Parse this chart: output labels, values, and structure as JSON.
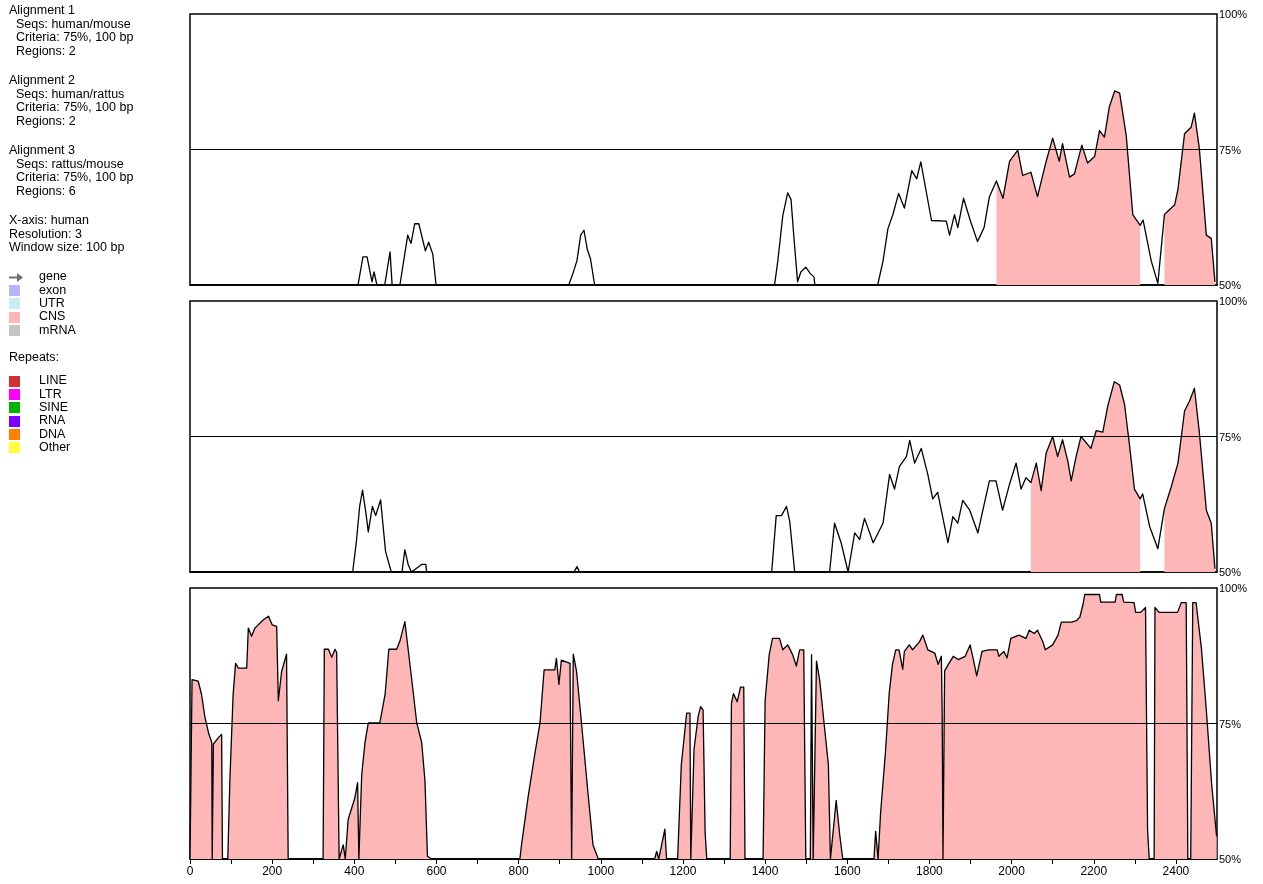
{
  "chart_data": [
    {
      "type": "line",
      "xlim": [
        0,
        2500
      ],
      "ylim": [
        50,
        100
      ],
      "yticks": [
        {
          "value": 50,
          "label": "50%"
        },
        {
          "value": 75,
          "label": "75%"
        },
        {
          "value": 100,
          "label": "100%"
        }
      ],
      "tick_labels": "y",
      "marker": "none",
      "ref_lines": [
        {
          "axis": "y",
          "value": 75,
          "color": "#000000"
        }
      ],
      "annotations": [
        "Alignment 1\n  Seqs: human/mouse\n  Criteria: 75%, 100 bp\n  Regions: 2",
        "Alignment 2\n  Seqs: human/rattus\n  Criteria: 75%, 100 bp\n  Regions: 2",
        "Alignment 3\n  Seqs: rattus/mouse\n  Criteria: 75%, 100 bp\n  Regions: 6",
        "X-axis: human\nResolution: 3\nWindow size: 100 bp",
        "gene",
        "exon",
        "UTR",
        "CNS",
        "mRNA",
        "Repeats:",
        "LINE",
        "LTR",
        "SINE",
        "RNA",
        "DNA",
        "Other"
      ],
      "x": [
        0,
        409,
        421,
        431,
        443,
        448,
        455,
        474,
        487,
        492,
        511,
        530,
        538,
        547,
        557,
        573,
        581,
        591,
        599,
        922,
        932,
        942,
        951,
        959,
        967,
        975,
        985,
        1423,
        1431,
        1443,
        1455,
        1463,
        1471,
        1479,
        1487,
        1499,
        1510,
        1519,
        1521,
        1674,
        1687,
        1699,
        1711,
        1725,
        1739,
        1757,
        1769,
        1779,
        1805,
        1841,
        1849,
        1861,
        1869,
        1883,
        1899,
        1917,
        1933,
        1946,
        1963,
        1979,
        1995,
        2015,
        2027,
        2047,
        2063,
        2083,
        2100,
        2116,
        2124,
        2141,
        2153,
        2171,
        2185,
        2202,
        2214,
        2226,
        2238,
        2251,
        2263,
        2279,
        2295,
        2313,
        2320,
        2340,
        2356,
        2372,
        2397,
        2405,
        2421,
        2437,
        2445,
        2457,
        2474,
        2486,
        2495
      ],
      "series": [
        {
          "type": "area",
          "color": "#ffb6b6",
          "values": [
            null,
            null,
            null,
            null,
            null,
            null,
            null,
            null,
            null,
            null,
            null,
            null,
            null,
            null,
            null,
            null,
            null,
            null,
            null,
            null,
            null,
            null,
            null,
            null,
            null,
            null,
            null,
            null,
            null,
            null,
            null,
            null,
            null,
            null,
            null,
            null,
            null,
            null,
            null,
            null,
            null,
            null,
            null,
            null,
            null,
            null,
            null,
            null,
            null,
            null,
            null,
            null,
            null,
            null,
            null,
            null,
            null,
            null,
            69.2,
            66,
            72.8,
            74.9,
            70.2,
            70.8,
            66.3,
            72.5,
            77.1,
            72.8,
            76.1,
            69.9,
            70.5,
            75.8,
            72.5,
            73.7,
            78.5,
            77.3,
            82.9,
            85.8,
            85.4,
            77.6,
            63,
            61,
            null,
            null,
            null,
            63,
            64.8,
            67.7,
            77.9,
            79.1,
            81.7,
            75.2,
            59.2,
            58.6,
            50.6
          ]
        },
        {
          "type": "line",
          "color": "#000000",
          "values": [
            50,
            50,
            55.2,
            55.2,
            50.6,
            52.4,
            50,
            50,
            56.1,
            50,
            50,
            59.2,
            57.7,
            61.3,
            61.3,
            56.3,
            57.9,
            55.7,
            50,
            50,
            52.1,
            54.5,
            59.2,
            60.1,
            56.6,
            54.8,
            50,
            50,
            54.5,
            62.8,
            67,
            65.8,
            57.9,
            50.6,
            52.4,
            53.3,
            52.1,
            51.5,
            50,
            50,
            54.4,
            60.4,
            63,
            66.9,
            64.2,
            71.1,
            69.6,
            72.7,
            61.9,
            61.8,
            59.2,
            63,
            60.6,
            66,
            62,
            58,
            60.6,
            66.3,
            69.2,
            66,
            72.8,
            74.9,
            70.2,
            70.8,
            66.3,
            72.5,
            77.1,
            72.8,
            76.1,
            69.9,
            70.5,
            75.8,
            72.5,
            73.7,
            78.5,
            77.3,
            82.9,
            85.8,
            85.4,
            77.6,
            63,
            61,
            62,
            54.4,
            50.3,
            63,
            64.8,
            67.7,
            77.9,
            79.1,
            81.7,
            75.2,
            59.2,
            58.6,
            50.6
          ]
        }
      ]
    },
    {
      "type": "line",
      "xlim": [
        0,
        2500
      ],
      "ylim": [
        50,
        100
      ],
      "yticks": [
        {
          "value": 50,
          "label": "50%"
        },
        {
          "value": 75,
          "label": "75%"
        },
        {
          "value": 100,
          "label": "100%"
        }
      ],
      "tick_labels": "y",
      "marker": "none",
      "ref_lines": [
        {
          "axis": "y",
          "value": 75,
          "color": "#000000"
        }
      ],
      "x": [
        0,
        396,
        405,
        413,
        420,
        428,
        434,
        444,
        452,
        464,
        476,
        490,
        516,
        523,
        531,
        539,
        564,
        574,
        576,
        935,
        942,
        948,
        1416,
        1427,
        1440,
        1452,
        1460,
        1472,
        1557,
        1569,
        1585,
        1602,
        1618,
        1630,
        1642,
        1663,
        1687,
        1703,
        1715,
        1727,
        1744,
        1752,
        1764,
        1780,
        1796,
        1808,
        1820,
        1845,
        1857,
        1869,
        1881,
        1898,
        1918,
        1930,
        1946,
        1962,
        1978,
        1995,
        2011,
        2023,
        2035,
        2047,
        2060,
        2072,
        2084,
        2100,
        2112,
        2124,
        2137,
        2145,
        2157,
        2169,
        2193,
        2206,
        2222,
        2234,
        2250,
        2263,
        2275,
        2287,
        2299,
        2313,
        2319,
        2336,
        2356,
        2372,
        2388,
        2405,
        2421,
        2433,
        2445,
        2457,
        2474,
        2486,
        2495
      ],
      "series": [
        {
          "type": "area",
          "color": "#ffb6b6",
          "values": [
            null,
            null,
            null,
            null,
            null,
            null,
            null,
            null,
            null,
            null,
            null,
            null,
            null,
            null,
            null,
            null,
            null,
            null,
            null,
            null,
            null,
            null,
            null,
            null,
            null,
            null,
            null,
            null,
            null,
            null,
            null,
            null,
            null,
            null,
            null,
            null,
            null,
            null,
            null,
            null,
            null,
            null,
            null,
            null,
            null,
            null,
            null,
            null,
            null,
            null,
            null,
            null,
            null,
            null,
            null,
            null,
            null,
            null,
            null,
            null,
            null,
            66.5,
            70.1,
            65,
            71.9,
            75,
            71.3,
            74.4,
            70.4,
            66.8,
            71.3,
            75,
            72.8,
            76.1,
            75.8,
            80.6,
            85.1,
            84.5,
            80.9,
            73.4,
            65.3,
            63.5,
            null,
            null,
            null,
            61.7,
            65.6,
            70.1,
            79.7,
            81.5,
            83.9,
            75.8,
            61.4,
            59,
            50.6
          ]
        },
        {
          "type": "line",
          "color": "#000000",
          "values": [
            50,
            50,
            55.6,
            62.1,
            65.1,
            61,
            57.4,
            62.1,
            60.4,
            63.3,
            53.8,
            50,
            50,
            54.1,
            51.4,
            50,
            51.4,
            51.4,
            50,
            50,
            51,
            50,
            50,
            60.4,
            60.4,
            62.1,
            59.3,
            50,
            50,
            59,
            55.4,
            50,
            57.2,
            56,
            59.9,
            55.4,
            59,
            68,
            65.3,
            69.5,
            71.3,
            74.3,
            70.1,
            72.8,
            68,
            63.5,
            64.7,
            55.4,
            60.2,
            59,
            63.2,
            61.4,
            57.2,
            61.4,
            66.8,
            66.8,
            61.4,
            66.2,
            70.1,
            65.3,
            67.4,
            66.5,
            70.1,
            65,
            71.9,
            75,
            71.3,
            74.4,
            70.4,
            66.8,
            71.3,
            75,
            72.8,
            76.1,
            75.8,
            80.6,
            85.1,
            84.5,
            80.9,
            73.4,
            65.3,
            63.5,
            64.4,
            58.4,
            54.3,
            61.7,
            65.6,
            70.1,
            79.7,
            81.5,
            83.9,
            75.8,
            61.4,
            59,
            50.6
          ]
        }
      ]
    },
    {
      "type": "line",
      "xlim": [
        0,
        2500
      ],
      "ylim": [
        50,
        100
      ],
      "yticks": [
        {
          "value": 50,
          "label": "50%"
        },
        {
          "value": 75,
          "label": "75%"
        },
        {
          "value": 100,
          "label": "100%"
        }
      ],
      "xticks": [
        0,
        {
          "value": 100,
          "label": null
        },
        200,
        {
          "value": 300,
          "label": null
        },
        400,
        {
          "value": 500,
          "label": null
        },
        600,
        {
          "value": 700,
          "label": null
        },
        800,
        {
          "value": 900,
          "label": null
        },
        1000,
        {
          "value": 1100,
          "label": null
        },
        1200,
        {
          "value": 1300,
          "label": null
        },
        1400,
        {
          "value": 1500,
          "label": null
        },
        1600,
        {
          "value": 1700,
          "label": null
        },
        1800,
        {
          "value": 1900,
          "label": null
        },
        2000,
        {
          "value": 2100,
          "label": null
        },
        2200,
        {
          "value": 2300,
          "label": null
        },
        2400
      ],
      "ref_lines": [
        {
          "axis": "y",
          "value": 75,
          "color": "#000000"
        }
      ],
      "x": [
        0,
        5,
        20,
        28,
        36,
        45,
        53,
        54,
        57,
        69,
        77,
        79,
        92,
        97,
        105,
        111,
        118,
        138,
        142,
        150,
        158,
        178,
        191,
        200,
        211,
        215,
        223,
        235,
        239,
        324,
        327,
        337,
        345,
        353,
        357,
        363,
        373,
        378,
        385,
        401,
        408,
        411,
        418,
        426,
        434,
        462,
        475,
        484,
        503,
        511,
        523,
        531,
        543,
        552,
        564,
        572,
        578,
        588,
        803,
        807,
        823,
        839,
        852,
        862,
        888,
        892,
        898,
        904,
        925,
        929,
        933,
        941,
        953,
        969,
        981,
        994,
        1131,
        1136,
        1141,
        1156,
        1160,
        1187,
        1196,
        1209,
        1217,
        1219,
        1227,
        1237,
        1243,
        1249,
        1254,
        1258,
        1315,
        1318,
        1323,
        1332,
        1340,
        1348,
        1351,
        1395,
        1400,
        1410,
        1418,
        1435,
        1443,
        1455,
        1467,
        1476,
        1484,
        1494,
        1499,
        1510,
        1513,
        1517,
        1525,
        1533,
        1541,
        1554,
        1559,
        1573,
        1582,
        1589,
        1665,
        1669,
        1675,
        1681,
        1693,
        1702,
        1710,
        1718,
        1726,
        1735,
        1739,
        1751,
        1759,
        1776,
        1784,
        1796,
        1813,
        1821,
        1829,
        1831,
        1833,
        1837,
        1846,
        1858,
        1870,
        1887,
        1899,
        1907,
        1915,
        1928,
        1944,
        1965,
        1969,
        1981,
        1989,
        1998,
        2018,
        2035,
        2043,
        2055,
        2063,
        2076,
        2082,
        2100,
        2113,
        2121,
        2146,
        2158,
        2166,
        2174,
        2178,
        2214,
        2217,
        2252,
        2255,
        2269,
        2273,
        2298,
        2302,
        2314,
        2326,
        2331,
        2335,
        2347,
        2349,
        2359,
        2404,
        2413,
        2425,
        2429,
        2436,
        2441,
        2449,
        2462,
        2474,
        2487,
        2499
      ],
      "series": [
        {
          "type": "area",
          "color": "#ffb6b6",
          "values": [
            50,
            83.1,
            82.8,
            80.4,
            76.3,
            73.3,
            71.5,
            50,
            71.2,
            72.4,
            73,
            50,
            50,
            64.4,
            80.4,
            86.1,
            85.2,
            85.2,
            92.6,
            91.1,
            92.6,
            94.1,
            94.8,
            93.2,
            92.9,
            79.2,
            84.6,
            87.8,
            50,
            50,
            88.7,
            88.7,
            87.2,
            88.7,
            88.1,
            50,
            52.6,
            50,
            57.3,
            61.2,
            64.1,
            50,
            65.6,
            71.5,
            75.1,
            75.1,
            80.4,
            88.7,
            88.7,
            90.2,
            93.8,
            88.7,
            81,
            75.1,
            71.5,
            64.4,
            50.5,
            50,
            50,
            52.6,
            61.4,
            69.2,
            75.1,
            84.9,
            84.9,
            87,
            82.2,
            86.7,
            86.1,
            50,
            87.8,
            84.6,
            75.1,
            62,
            52.6,
            50,
            50,
            51.4,
            50,
            55.5,
            50,
            50,
            67.4,
            76.9,
            76.9,
            50,
            70.3,
            76.3,
            78.1,
            77.5,
            54.8,
            50,
            50,
            78.7,
            80.5,
            79,
            81.7,
            81.7,
            50,
            50,
            79.3,
            87.7,
            90.7,
            90.7,
            88.6,
            89.5,
            87.7,
            85.6,
            88.6,
            88.6,
            50,
            50,
            87.7,
            50,
            86.5,
            82.9,
            76.9,
            67.4,
            50,
            60.8,
            54.2,
            50,
            50,
            55.1,
            50,
            58.4,
            69.8,
            80.5,
            85.9,
            88.6,
            88.6,
            85,
            88.3,
            89.5,
            88.6,
            90.1,
            91.3,
            88.6,
            88,
            85.9,
            87.4,
            76.9,
            50,
            84.7,
            85.9,
            87.4,
            86.8,
            87.4,
            89.5,
            86.8,
            83.8,
            88.3,
            88.6,
            88.6,
            87.4,
            88.3,
            87.1,
            90.7,
            91.3,
            90.7,
            92.2,
            91.6,
            92.2,
            90.1,
            88.6,
            89.5,
            91.3,
            93.7,
            93.7,
            94,
            94.6,
            97,
            98.8,
            98.8,
            97.4,
            97.4,
            98.8,
            98.8,
            97.4,
            97.3,
            95.5,
            95.5,
            96.4,
            55.4,
            50,
            50,
            96.4,
            95.5,
            95.5,
            97.3,
            97.3,
            50,
            50,
            97.3,
            97.3,
            88.9,
            77.5,
            63.8,
            54.2
          ]
        }
      ]
    }
  ]
}
